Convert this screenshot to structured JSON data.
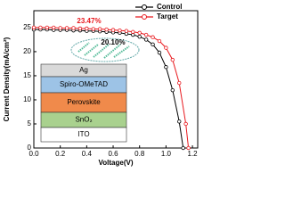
{
  "chart_data": {
    "type": "line",
    "x_label": "Voltage(V)",
    "y_label": "Current Density(mA/cm²)",
    "xlim": [
      0,
      1.24
    ],
    "ylim": [
      0,
      28.5
    ],
    "xticks": [
      {
        "value": 0,
        "label": "0.0"
      },
      {
        "value": 0.2,
        "label": "0.2"
      },
      {
        "value": 0.4,
        "label": "0.4"
      },
      {
        "value": 0.6,
        "label": "0.6"
      },
      {
        "value": 0.8,
        "label": "0.8"
      },
      {
        "value": 1.0,
        "label": "1.0"
      },
      {
        "value": 1.2,
        "label": "1.2"
      }
    ],
    "yticks": [
      0,
      5,
      10,
      15,
      20,
      25
    ],
    "legend": "top-right",
    "series": [
      {
        "name": "Control",
        "color": "#000000",
        "x": [
          0,
          0.05,
          0.1,
          0.15,
          0.2,
          0.25,
          0.3,
          0.35,
          0.4,
          0.45,
          0.5,
          0.55,
          0.6,
          0.65,
          0.7,
          0.75,
          0.8,
          0.85,
          0.9,
          0.95,
          1.0,
          1.05,
          1.1,
          1.13
        ],
        "values": [
          24.6,
          24.6,
          24.6,
          24.5,
          24.5,
          24.5,
          24.4,
          24.4,
          24.3,
          24.3,
          24.2,
          24.1,
          24.0,
          23.9,
          23.7,
          23.5,
          23.1,
          22.5,
          21.5,
          19.8,
          16.8,
          12.0,
          5.5,
          0
        ]
      },
      {
        "name": "Target",
        "color": "#e8191e",
        "x": [
          0,
          0.05,
          0.1,
          0.15,
          0.2,
          0.25,
          0.3,
          0.35,
          0.4,
          0.45,
          0.5,
          0.55,
          0.6,
          0.65,
          0.7,
          0.75,
          0.8,
          0.85,
          0.9,
          0.95,
          1.0,
          1.05,
          1.1,
          1.15,
          1.17
        ],
        "values": [
          25.0,
          25.0,
          25.0,
          25.0,
          24.9,
          24.9,
          24.9,
          24.8,
          24.8,
          24.7,
          24.7,
          24.6,
          24.5,
          24.4,
          24.3,
          24.1,
          23.9,
          23.5,
          23.0,
          22.2,
          20.8,
          18.3,
          13.5,
          5.0,
          0
        ]
      }
    ],
    "annotations": [
      {
        "text": "23.47%",
        "color": "#e8191e"
      },
      {
        "text": "20.10%",
        "color": "#000000"
      }
    ],
    "inset_layers": [
      {
        "label": "Ag",
        "color": "#d9d9d9"
      },
      {
        "label": "Spiro-OMeTAD",
        "color": "#9dc3e6"
      },
      {
        "label": "Perovskite",
        "color": "#f08a4b"
      },
      {
        "label": "SnO₂",
        "color": "#a9d18e"
      },
      {
        "label": "ITO",
        "color": "#ffffff"
      }
    ]
  }
}
